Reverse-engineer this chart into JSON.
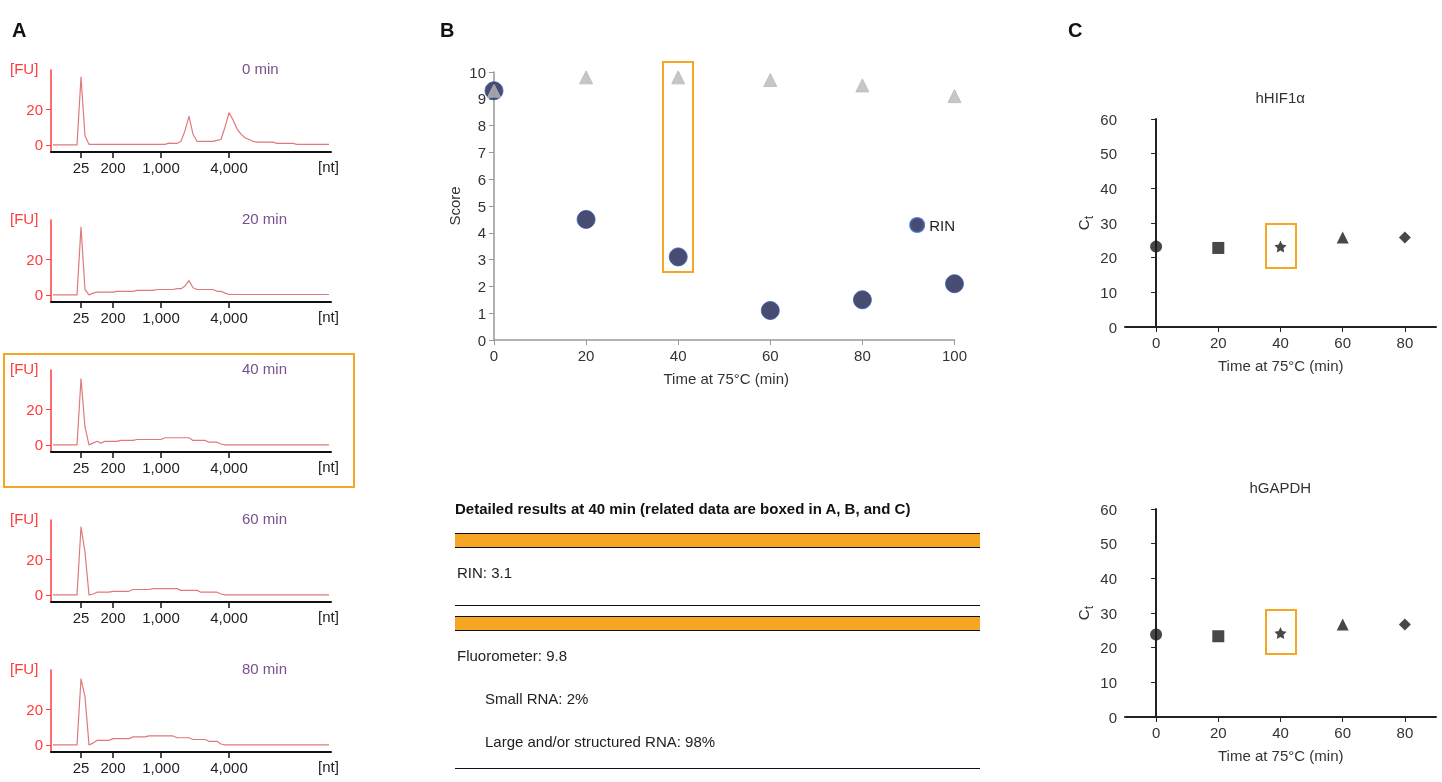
{
  "chart_data": [
    {
      "type": "line",
      "title": "0 min",
      "ylabel": "[FU]",
      "xlabel": "[nt]",
      "annotations": [
        "A"
      ],
      "categories": [
        null,
        null,
        null,
        null,
        null,
        null,
        null,
        "25",
        null,
        null,
        null,
        null,
        null,
        null,
        null,
        "200",
        null,
        null,
        null,
        null,
        null,
        null,
        null,
        null,
        null,
        null,
        null,
        "1,000",
        null,
        null,
        null,
        null,
        null,
        null,
        null,
        null,
        null,
        null,
        null,
        null,
        null,
        null,
        null,
        null,
        "4,000",
        null,
        null,
        null,
        null,
        null,
        null,
        null,
        null,
        null,
        null,
        null,
        null,
        null,
        null,
        null,
        null,
        null,
        null,
        null,
        null,
        null,
        null,
        null,
        null,
        null
      ],
      "ylim": [
        -4,
        42
      ],
      "yticks": [
        0,
        20
      ],
      "series": [
        {
          "color": "#e07a7a",
          "values": [
            0,
            0,
            0,
            0,
            0,
            0,
            0,
            38,
            5,
            0.3,
            0.3,
            0.3,
            0.3,
            0.3,
            0.3,
            0.3,
            0.3,
            0.3,
            0.3,
            0.3,
            0.3,
            0.3,
            0.3,
            0.3,
            0.3,
            0.3,
            0.3,
            0.3,
            0.3,
            1,
            0.8,
            0.8,
            2,
            8,
            16,
            6,
            2,
            2,
            2,
            2,
            2,
            2.5,
            3,
            10,
            18,
            14,
            9,
            6,
            4,
            3,
            2,
            1.5,
            1.5,
            1.5,
            1.5,
            1.5,
            0.8,
            0.8,
            0.8,
            0.8,
            0.8,
            0.3,
            0.3,
            0.3,
            0.3,
            0.3,
            0.3,
            0.3,
            0.3,
            0.3
          ]
        }
      ]
    },
    {
      "type": "line",
      "title": "20 min",
      "ylabel": "[FU]",
      "xlabel": "[nt]",
      "categories": [
        null,
        null,
        null,
        null,
        null,
        null,
        null,
        "25",
        null,
        null,
        null,
        null,
        null,
        null,
        null,
        "200",
        null,
        null,
        null,
        null,
        null,
        null,
        null,
        null,
        null,
        null,
        null,
        "1,000",
        null,
        null,
        null,
        null,
        null,
        null,
        null,
        null,
        null,
        null,
        null,
        null,
        null,
        null,
        null,
        null,
        "4,000",
        null,
        null,
        null,
        null,
        null,
        null,
        null,
        null,
        null,
        null,
        null,
        null,
        null,
        null,
        null,
        null,
        null,
        null,
        null,
        null,
        null,
        null,
        null,
        null,
        null
      ],
      "ylim": [
        -4,
        42
      ],
      "yticks": [
        0,
        20
      ],
      "series": [
        {
          "color": "#e07a7a",
          "values": [
            0,
            0,
            0,
            0,
            0,
            0,
            0,
            38,
            3,
            0,
            1,
            1.5,
            1.5,
            1.5,
            1.5,
            1.5,
            2,
            2,
            2,
            2,
            2,
            2.5,
            2.5,
            2.5,
            2.5,
            2.5,
            3,
            3,
            3,
            3,
            3,
            3.5,
            3.5,
            5,
            8,
            4,
            3,
            3,
            3,
            3,
            3,
            2,
            2,
            1,
            0.2,
            0.2,
            0.2,
            0.2,
            0.2,
            0.2,
            0.2,
            0.2,
            0.2,
            0.2,
            0.2,
            0.2,
            0.2,
            0.2,
            0.2,
            0.2,
            0.2,
            0.2,
            0.2,
            0.2,
            0.2,
            0.2,
            0.2,
            0.2,
            0.2,
            0.2
          ]
        }
      ]
    },
    {
      "type": "line",
      "title": "40 min",
      "ylabel": "[FU]",
      "xlabel": "[nt]",
      "categories": [
        null,
        null,
        null,
        null,
        null,
        null,
        null,
        "25",
        null,
        null,
        null,
        null,
        null,
        null,
        null,
        "200",
        null,
        null,
        null,
        null,
        null,
        null,
        null,
        null,
        null,
        null,
        null,
        "1,000",
        null,
        null,
        null,
        null,
        null,
        null,
        null,
        null,
        null,
        null,
        null,
        null,
        null,
        null,
        null,
        null,
        "4,000",
        null,
        null,
        null,
        null,
        null,
        null,
        null,
        null,
        null,
        null,
        null,
        null,
        null,
        null,
        null,
        null,
        null,
        null,
        null,
        null,
        null,
        null,
        null,
        null,
        null
      ],
      "ylim": [
        -4,
        42
      ],
      "yticks": [
        0,
        20
      ],
      "series": [
        {
          "color": "#e07a7a",
          "values": [
            0,
            0,
            0,
            0,
            0,
            0,
            0,
            37,
            10,
            0,
            1,
            2,
            1,
            2,
            2,
            2,
            2,
            2.5,
            2.5,
            2.5,
            2.5,
            3,
            3,
            3,
            3,
            3,
            3,
            3,
            4,
            4,
            4,
            4,
            4,
            4,
            4,
            2.5,
            2.5,
            2.5,
            2.5,
            1.5,
            1.5,
            1.5,
            0.5,
            0,
            0,
            0,
            0,
            0,
            0,
            0,
            0,
            0,
            0,
            0,
            0,
            0,
            0,
            0,
            0,
            0,
            0,
            0,
            0,
            0,
            0,
            0,
            0,
            0,
            0,
            0
          ]
        }
      ]
    },
    {
      "type": "line",
      "title": "60 min",
      "ylabel": "[FU]",
      "xlabel": "[nt]",
      "categories": [
        null,
        null,
        null,
        null,
        null,
        null,
        null,
        "25",
        null,
        null,
        null,
        null,
        null,
        null,
        null,
        "200",
        null,
        null,
        null,
        null,
        null,
        null,
        null,
        null,
        null,
        null,
        null,
        "1,000",
        null,
        null,
        null,
        null,
        null,
        null,
        null,
        null,
        null,
        null,
        null,
        null,
        null,
        null,
        null,
        null,
        "4,000",
        null,
        null,
        null,
        null,
        null,
        null,
        null,
        null,
        null,
        null,
        null,
        null,
        null,
        null,
        null,
        null,
        null,
        null,
        null,
        null,
        null,
        null,
        null,
        null,
        null
      ],
      "ylim": [
        -4,
        42
      ],
      "yticks": [
        0,
        20
      ],
      "series": [
        {
          "color": "#e07a7a",
          "values": [
            0,
            0,
            0,
            0,
            0,
            0,
            0,
            38,
            24,
            0,
            0.5,
            1.5,
            1.5,
            1.5,
            1.5,
            2,
            2,
            2,
            2,
            2,
            3,
            3,
            3,
            3,
            3,
            3.5,
            3.5,
            3.5,
            3.5,
            3.5,
            3.5,
            3.5,
            2.5,
            2.5,
            2.5,
            2.5,
            2.5,
            1.5,
            1.5,
            1.5,
            1.5,
            1.5,
            0.5,
            0,
            0,
            0,
            0,
            0,
            0,
            0,
            0,
            0,
            0,
            0,
            0,
            0,
            0,
            0,
            0,
            0,
            0,
            0,
            0,
            0,
            0,
            0,
            0,
            0,
            0,
            0
          ]
        }
      ]
    },
    {
      "type": "line",
      "title": "80 min",
      "ylabel": "[FU]",
      "xlabel": "[nt]",
      "categories": [
        null,
        null,
        null,
        null,
        null,
        null,
        null,
        "25",
        null,
        null,
        null,
        null,
        null,
        null,
        null,
        "200",
        null,
        null,
        null,
        null,
        null,
        null,
        null,
        null,
        null,
        null,
        null,
        "1,000",
        null,
        null,
        null,
        null,
        null,
        null,
        null,
        null,
        null,
        null,
        null,
        null,
        null,
        null,
        null,
        null,
        "4,000",
        null,
        null,
        null,
        null,
        null,
        null,
        null,
        null,
        null,
        null,
        null,
        null,
        null,
        null,
        null,
        null,
        null,
        null,
        null,
        null,
        null,
        null,
        null,
        null,
        null
      ],
      "ylim": [
        -4,
        42
      ],
      "yticks": [
        0,
        20
      ],
      "series": [
        {
          "color": "#e07a7a",
          "values": [
            0,
            0,
            0,
            0,
            0,
            0,
            0,
            37,
            27,
            0,
            1,
            2.5,
            2.5,
            2.5,
            2.5,
            3.5,
            3.5,
            3.5,
            3.5,
            3.5,
            4.5,
            4.5,
            4.5,
            4.5,
            5,
            5,
            5,
            5,
            5,
            5,
            5,
            4,
            4,
            4,
            4,
            3,
            3,
            3,
            3,
            2,
            2,
            2,
            0.5,
            0,
            0,
            0,
            0,
            0,
            0,
            0,
            0,
            0,
            0,
            0,
            0,
            0,
            0,
            0,
            0,
            0,
            0,
            0,
            0,
            0,
            0,
            0,
            0,
            0,
            0,
            0
          ]
        }
      ]
    },
    {
      "type": "scatter",
      "xlabel": "Time at 75°C (min)",
      "ylabel": "Score",
      "annotations": [
        "B"
      ],
      "x": [
        0,
        20,
        40,
        60,
        80,
        100
      ],
      "xlim": [
        0,
        100
      ],
      "xticks": [
        0,
        20,
        40,
        60,
        80,
        100
      ],
      "ylim": [
        0,
        10
      ],
      "yticks": [
        0,
        1,
        2,
        3,
        4,
        5,
        6,
        7,
        8,
        9,
        10
      ],
      "legend": "right",
      "series": [
        {
          "name": "RIN",
          "color": "#1a1f4e",
          "marker": "circle",
          "values": [
            9.3,
            4.5,
            3.1,
            1.1,
            1.5,
            2.1
          ]
        },
        {
          "color": "#b8b8b8",
          "marker": "triangle",
          "values": [
            9.3,
            9.8,
            9.8,
            9.7,
            9.5,
            9.1
          ]
        }
      ]
    },
    {
      "type": "other",
      "title": "Detailed results at 40 min (related data are boxed in A, B, and C)",
      "annotations": [
        "RIN: 3.1",
        "Fluorometer: 9.8",
        "Small RNA: 2%",
        "Large and/or structured RNA: 98%"
      ]
    },
    {
      "type": "scatter",
      "title": "hHIF1α",
      "xlabel": "Time at 75°C (min)",
      "ylabel": "C$_{t}$",
      "annotations": [
        "C"
      ],
      "xlim": [
        -10,
        90
      ],
      "xticks": [
        0,
        20,
        40,
        60,
        80
      ],
      "ylim": [
        0,
        60
      ],
      "yticks": [
        0,
        10,
        20,
        30,
        40,
        50,
        60
      ],
      "series": [
        {
          "color": "#1a1a1a",
          "marker": "circle",
          "x": [
            0
          ],
          "values": [
            23.2
          ]
        },
        {
          "color": "#1a1a1a",
          "marker": "square",
          "x": [
            20
          ],
          "values": [
            22.8
          ]
        },
        {
          "color": "#1a1a1a",
          "marker": "star",
          "x": [
            40
          ],
          "values": [
            23.2
          ]
        },
        {
          "color": "#1a1a1a",
          "marker": "triangle",
          "x": [
            60
          ],
          "values": [
            25.8
          ]
        },
        {
          "color": "#1a1a1a",
          "marker": "diamond",
          "x": [
            80
          ],
          "values": [
            25.8
          ]
        }
      ]
    },
    {
      "type": "scatter",
      "title": "hGAPDH",
      "xlabel": "Time at 75°C (min)",
      "ylabel": "C$_{t}$",
      "xlim": [
        -10,
        90
      ],
      "xticks": [
        0,
        20,
        40,
        60,
        80
      ],
      "ylim": [
        0,
        60
      ],
      "yticks": [
        0,
        10,
        20,
        30,
        40,
        50,
        60
      ],
      "series": [
        {
          "color": "#1a1a1a",
          "marker": "circle",
          "x": [
            0
          ],
          "values": [
            23.8
          ]
        },
        {
          "color": "#1a1a1a",
          "marker": "square",
          "x": [
            20
          ],
          "values": [
            23.3
          ]
        },
        {
          "color": "#1a1a1a",
          "marker": "star",
          "x": [
            40
          ],
          "values": [
            24.2
          ]
        },
        {
          "color": "#1a1a1a",
          "marker": "triangle",
          "x": [
            60
          ],
          "values": [
            26.7
          ]
        },
        {
          "color": "#1a1a1a",
          "marker": "diamond",
          "x": [
            80
          ],
          "values": [
            26.7
          ]
        }
      ]
    }
  ]
}
